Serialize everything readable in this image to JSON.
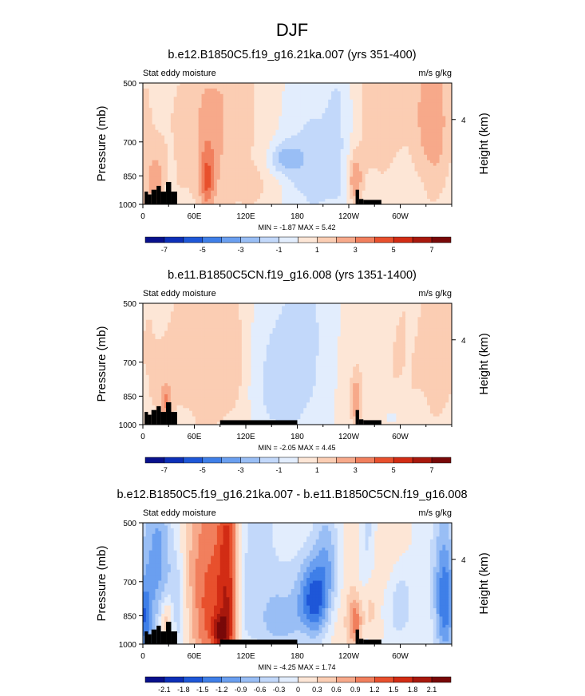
{
  "page_title": "DJF",
  "chart_data": [
    {
      "type": "heatmap",
      "title": "b.e12.B1850C5.f19_g16.21ka.007 (yrs 351-400)",
      "left_label": "Stat eddy moisture",
      "right_label": "m/s g/kg",
      "ylabel": "Pressure (mb)",
      "ylabel_right": "Height (km)",
      "y_ticks": [
        "500",
        "700",
        "850",
        "1000"
      ],
      "y_right_ticks": [
        "4"
      ],
      "x_ticks": [
        "0",
        "60E",
        "120E",
        "180",
        "120W",
        "60W"
      ],
      "stats": "MIN =  -1.87  MAX =   5.42",
      "colorbar_labels": [
        "-7",
        "-5",
        "-3",
        "-1",
        "1",
        "3",
        "5",
        "7"
      ],
      "contour_levels": [
        -8,
        -7,
        -6,
        -5,
        -4,
        -3,
        -2,
        -1,
        0,
        1,
        2,
        3,
        4,
        5,
        6,
        7,
        8
      ],
      "min": -1.87,
      "max": 5.42,
      "terrain_segments": [
        [
          0,
          40
        ]
      ]
    },
    {
      "type": "heatmap",
      "title": "b.e11.B1850C5CN.f19_g16.008 (yrs 1351-1400)",
      "left_label": "Stat eddy moisture",
      "right_label": "m/s g/kg",
      "ylabel": "Pressure (mb)",
      "ylabel_right": "Height (km)",
      "y_ticks": [
        "500",
        "700",
        "850",
        "1000"
      ],
      "y_right_ticks": [
        "4"
      ],
      "x_ticks": [
        "0",
        "60E",
        "120E",
        "180",
        "120W",
        "60W"
      ],
      "stats": "MIN =  -2.05  MAX =   4.45",
      "colorbar_labels": [
        "-7",
        "-5",
        "-3",
        "-1",
        "1",
        "3",
        "5",
        "7"
      ],
      "contour_levels": [
        -8,
        -7,
        -6,
        -5,
        -4,
        -3,
        -2,
        -1,
        0,
        1,
        2,
        3,
        4,
        5,
        6,
        7,
        8
      ],
      "min": -2.05,
      "max": 4.45,
      "terrain_segments": [
        [
          0,
          40
        ],
        [
          90,
          180
        ]
      ]
    },
    {
      "type": "heatmap",
      "title": "b.e12.B1850C5.f19_g16.21ka.007 - b.e11.B1850C5CN.f19_g16.008",
      "left_label": "Stat eddy moisture",
      "right_label": "m/s g/kg",
      "ylabel": "Pressure (mb)",
      "ylabel_right": "Height (km)",
      "y_ticks": [
        "500",
        "700",
        "850",
        "1000"
      ],
      "y_right_ticks": [
        "4"
      ],
      "x_ticks": [
        "0",
        "60E",
        "120E",
        "180",
        "120W",
        "60W"
      ],
      "stats": "MIN =  -4.25  MAX =   1.74",
      "colorbar_labels": [
        "-2.1",
        "-1.8",
        "-1.5",
        "-1.2",
        "-0.9",
        "-0.6",
        "-0.3",
        "0",
        "0.3",
        "0.6",
        "0.9",
        "1.2",
        "1.5",
        "1.8",
        "2.1"
      ],
      "contour_levels": [
        -2.4,
        -2.1,
        -1.8,
        -1.5,
        -1.2,
        -0.9,
        -0.6,
        -0.3,
        0,
        0.3,
        0.6,
        0.9,
        1.2,
        1.5,
        1.8,
        2.1,
        2.4
      ],
      "min": -4.25,
      "max": 1.74,
      "terrain_segments": [
        [
          0,
          40
        ],
        [
          90,
          180
        ]
      ]
    }
  ],
  "colors": {
    "palette": [
      "#08108c",
      "#0d2fb8",
      "#1e57d8",
      "#3f7fe8",
      "#6a9ff0",
      "#99bef5",
      "#c2d8fa",
      "#e2edfd",
      "#fde6d6",
      "#fbcdb3",
      "#f7a98a",
      "#f17f5d",
      "#e8502d",
      "#d22c14",
      "#a8180d",
      "#780808"
    ],
    "terrain": "#000000",
    "text": "#000000"
  }
}
